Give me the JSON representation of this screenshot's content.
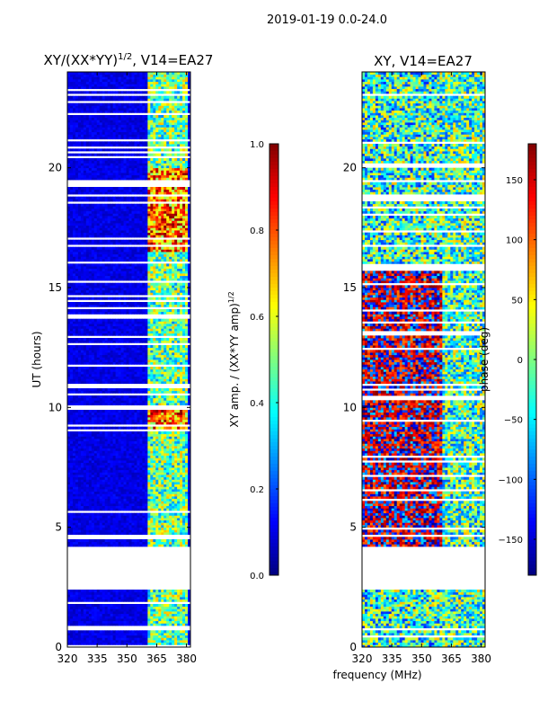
{
  "figure_title": "2019-01-19 0.0-24.0",
  "colors": {
    "jet": [
      "#00007f",
      "#0000ff",
      "#007fff",
      "#00ffff",
      "#7fff7f",
      "#ffff00",
      "#ff7f00",
      "#ff0000",
      "#7f0000"
    ]
  },
  "chart_data": [
    {
      "type": "heatmap",
      "id": "left",
      "title_main": "XY/(XX*YY)",
      "title_sup": "1/2",
      "title_tail": ", V14=EA27",
      "ylabel": "UT (hours)",
      "xlim": [
        320,
        382
      ],
      "ylim": [
        0,
        24
      ],
      "xticks": [
        320,
        335,
        350,
        365,
        380
      ],
      "yticks": [
        0,
        5,
        10,
        15,
        20
      ],
      "colorbar": {
        "label_main": "XY amp. / (XX*YY amp)",
        "label_sup": "1/2",
        "range": [
          0,
          1
        ],
        "ticks": [
          "0.0",
          "0.2",
          "0.4",
          "0.6",
          "0.8",
          "1.0"
        ]
      }
    },
    {
      "type": "heatmap",
      "id": "right",
      "title_main": "XY, V14=EA27",
      "xlabel": "frequency (MHz)",
      "xlim": [
        320,
        382
      ],
      "ylim": [
        0,
        24
      ],
      "xticks": [
        320,
        335,
        350,
        365,
        380
      ],
      "yticks": [
        0,
        5,
        10,
        15,
        20
      ],
      "colorbar": {
        "label_main": "phase (deg)",
        "range": [
          -180,
          180
        ],
        "ticks": [
          "150",
          "100",
          "50",
          "0",
          "−50",
          "−100",
          "−150"
        ]
      }
    }
  ],
  "data_gaps_hours": [
    [
      2.4,
      4.1
    ]
  ]
}
